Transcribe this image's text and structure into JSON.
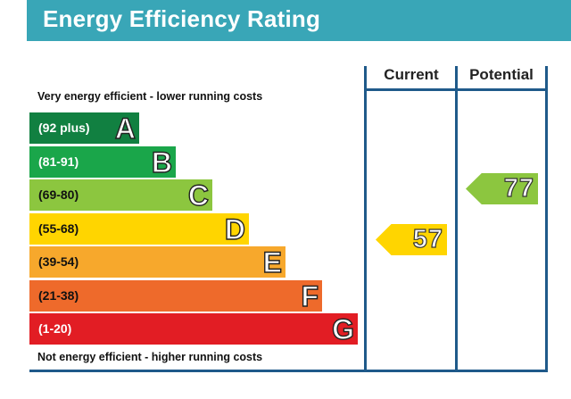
{
  "header": {
    "title": "Energy Efficiency Rating",
    "color": "#39a6b7"
  },
  "captions": {
    "top": "Very energy efficient - lower running costs",
    "bottom": "Not energy efficient - higher running costs"
  },
  "columns": {
    "current": "Current",
    "potential": "Potential"
  },
  "bands": [
    {
      "letter": "A",
      "range": "(92 plus)",
      "color": "#118041",
      "text_color": "#ffffff"
    },
    {
      "letter": "B",
      "range": "(81-91)",
      "color": "#1aa64a",
      "text_color": "#ffffff"
    },
    {
      "letter": "C",
      "range": "(69-80)",
      "color": "#8cc63f",
      "text_color": "#111111"
    },
    {
      "letter": "D",
      "range": "(55-68)",
      "color": "#ffd500",
      "text_color": "#111111"
    },
    {
      "letter": "E",
      "range": "(39-54)",
      "color": "#f7a82c",
      "text_color": "#111111"
    },
    {
      "letter": "F",
      "range": "(21-38)",
      "color": "#ee6a2b",
      "text_color": "#111111"
    },
    {
      "letter": "G",
      "range": "(1-20)",
      "color": "#e21d24",
      "text_color": "#ffffff"
    }
  ],
  "ratings": {
    "current": {
      "value": "57",
      "band": "D",
      "color": "#ffd500"
    },
    "potential": {
      "value": "77",
      "band": "C",
      "color": "#8cc63f"
    }
  }
}
